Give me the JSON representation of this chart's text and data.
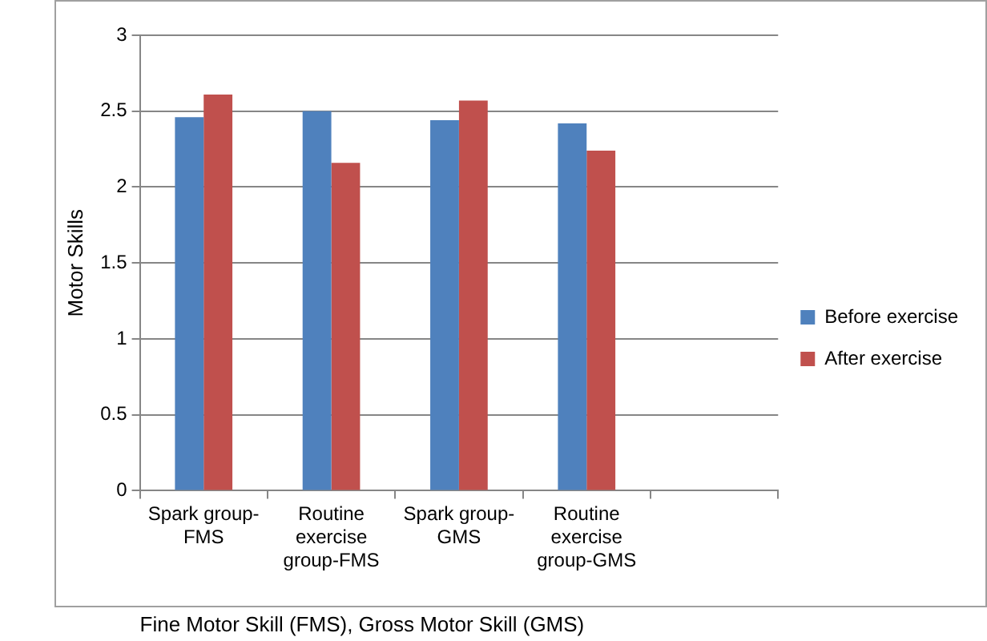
{
  "chart_data": {
    "type": "bar",
    "xlabel": "Fine Motor Skill (FMS), Gross Motor Skill (GMS)",
    "ylabel": "Motor Skills",
    "categories": [
      "Spark group-FMS",
      "Routine exercise group-FMS",
      "Spark group-GMS",
      "Routine exercise group-GMS",
      null
    ],
    "series": [
      {
        "name": "Before exercise",
        "color": "#4f81bd",
        "values": [
          2.46,
          2.5,
          2.44,
          2.42,
          null
        ]
      },
      {
        "name": "After exercise",
        "color": "#c0504d",
        "values": [
          2.61,
          2.16,
          2.57,
          2.24,
          null
        ]
      }
    ],
    "ylim": [
      0,
      3
    ],
    "yticks": [
      0,
      0.5,
      1,
      1.5,
      2,
      2.5,
      3
    ],
    "grid": "y",
    "legend": "right"
  }
}
